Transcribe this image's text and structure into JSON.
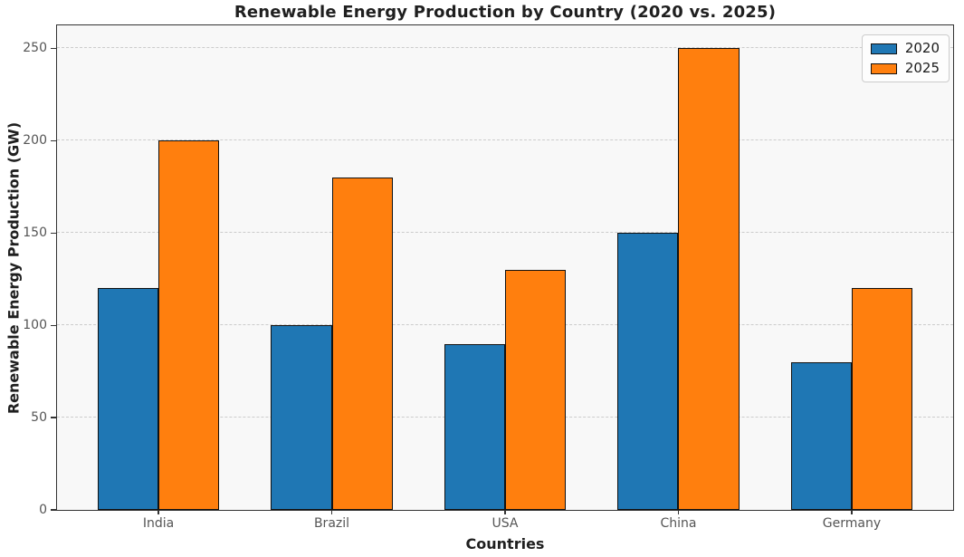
{
  "chart_data": {
    "type": "bar",
    "title": "Renewable Energy Production by Country (2020 vs. 2025)",
    "xlabel": "Countries",
    "ylabel": "Renewable Energy Production (GW)",
    "categories": [
      "India",
      "Brazil",
      "USA",
      "China",
      "Germany"
    ],
    "series": [
      {
        "name": "2020",
        "color": "#1f77b4",
        "values": [
          120,
          100,
          90,
          150,
          80
        ]
      },
      {
        "name": "2025",
        "color": "#ff7f0e",
        "values": [
          200,
          180,
          130,
          250,
          120
        ]
      }
    ],
    "ylim": [
      0,
      262.5
    ],
    "yticks": [
      0,
      50,
      100,
      150,
      200,
      250
    ],
    "bar_width_fraction": 0.35,
    "grid": "horizontal-dashed",
    "legend_position": "upper-right",
    "bar_edge_color": "#111111",
    "plot_background": "#f8f8f8",
    "gridline_color": "#cccccc"
  }
}
